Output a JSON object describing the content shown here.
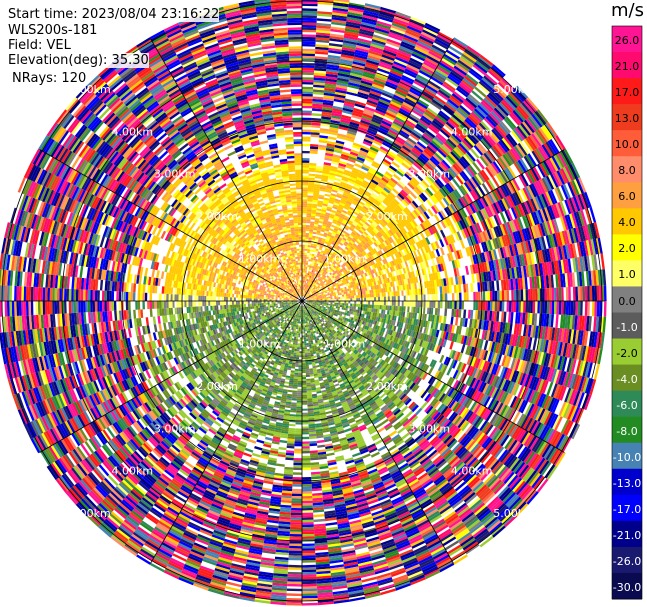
{
  "header": {
    "start_time": "Start time: 2023/08/04 23:16:22",
    "instrument": "WLS200s-181",
    "field": "Field: VEL",
    "elevation": "Elevation(deg): 35.30",
    "nrays": "NRays: 120"
  },
  "colorbar": {
    "unit": "m/s",
    "labels": [
      "26.0",
      "21.0",
      "17.0",
      "13.0",
      "10.0",
      "8.0",
      "6.0",
      "4.0",
      "2.0",
      "1.0",
      "0.0",
      "-1.0",
      "-2.0",
      "-4.0",
      "-6.0",
      "-8.0",
      "-10.0",
      "-13.0",
      "-17.0",
      "-21.0",
      "-26.0",
      "-30.0"
    ],
    "colors": [
      "#ff1493",
      "#ff0a6e",
      "#ff1a1a",
      "#f03c1e",
      "#ff5c3a",
      "#ff8c6b",
      "#ffa040",
      "#ffc800",
      "#ffff00",
      "#ffff66",
      "#808080",
      "#5c5c5c",
      "#9acd32",
      "#6b8e23",
      "#2e8b57",
      "#228b22",
      "#4682b4",
      "#0000cd",
      "#0000ff",
      "#00008b",
      "#191970",
      "#0a0a50"
    ]
  },
  "chart_data": {
    "type": "heatmap",
    "field": "VEL",
    "units": "m/s",
    "vmin": -30.0,
    "vmax": 26.0,
    "nrays": 120,
    "elevation_deg": 35.3,
    "range_rings_km": [
      1.0,
      2.0,
      3.0,
      4.0,
      5.0
    ],
    "range_ring_labels": [
      "1.00km",
      "2.00km",
      "3.00km",
      "4.00km",
      "5.00km"
    ],
    "spoke_interval_deg": 30,
    "approx_field_description": {
      "near_range_north_half_ms": [
        1.0,
        10.0
      ],
      "near_range_south_half_ms": [
        -8.0,
        -1.0
      ],
      "beyond_about_2.5km": "noise (full color range)"
    }
  }
}
